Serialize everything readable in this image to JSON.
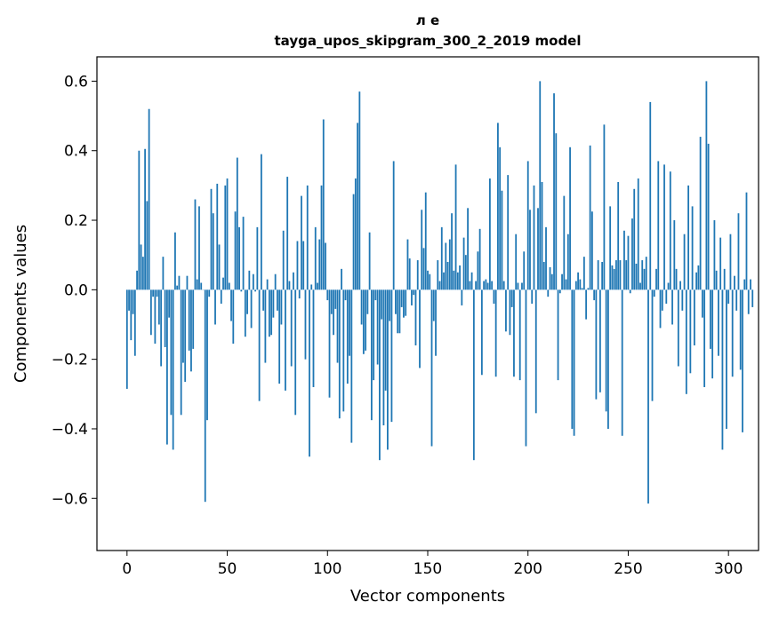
{
  "chart_data": {
    "type": "bar",
    "title_line1": "л е",
    "title_line2": "tayga_upos_skipgram_300_2_2019 model",
    "xlabel": "Vector components",
    "ylabel": "Components values",
    "xlim": [
      -15,
      315
    ],
    "ylim": [
      -0.75,
      0.67
    ],
    "xticks": [
      0,
      50,
      100,
      150,
      200,
      250,
      300
    ],
    "xtick_labels": [
      "0",
      "50",
      "100",
      "150",
      "200",
      "250",
      "300"
    ],
    "yticks": [
      -0.6,
      -0.4,
      -0.2,
      0.0,
      0.2,
      0.4,
      0.6
    ],
    "ytick_labels": [
      "−0.6",
      "−0.4",
      "−0.2",
      "0.0",
      "0.2",
      "0.4",
      "0.6"
    ],
    "bar_color": "#1f77b4",
    "values": [
      -0.285,
      -0.06,
      -0.145,
      -0.07,
      -0.19,
      0.055,
      0.4,
      0.13,
      0.095,
      0.405,
      0.255,
      0.52,
      -0.13,
      -0.02,
      -0.155,
      -0.02,
      -0.1,
      -0.22,
      0.095,
      -0.165,
      -0.445,
      -0.08,
      -0.36,
      -0.46,
      0.165,
      0.012,
      0.04,
      -0.36,
      -0.21,
      -0.265,
      0.04,
      -0.175,
      -0.235,
      -0.17,
      0.26,
      0.03,
      0.24,
      0.02,
      0.0,
      -0.61,
      -0.375,
      -0.02,
      0.29,
      0.22,
      -0.1,
      0.305,
      0.13,
      -0.04,
      0.035,
      0.3,
      0.32,
      0.02,
      -0.09,
      -0.155,
      0.225,
      0.38,
      0.18,
      -0.005,
      0.21,
      -0.135,
      -0.07,
      0.055,
      -0.11,
      0.045,
      -0.005,
      0.18,
      -0.32,
      0.39,
      -0.06,
      -0.21,
      0.03,
      -0.135,
      -0.13,
      -0.08,
      0.045,
      -0.06,
      -0.27,
      -0.1,
      0.17,
      -0.29,
      0.325,
      0.025,
      -0.22,
      0.05,
      -0.36,
      0.14,
      -0.025,
      0.27,
      0.14,
      -0.2,
      0.3,
      -0.48,
      0.015,
      -0.28,
      0.18,
      0.02,
      0.145,
      0.3,
      0.49,
      0.135,
      -0.03,
      -0.31,
      -0.07,
      -0.13,
      -0.055,
      -0.21,
      -0.37,
      0.06,
      -0.35,
      -0.03,
      -0.27,
      -0.19,
      -0.44,
      0.275,
      0.32,
      0.48,
      0.57,
      -0.1,
      -0.185,
      -0.175,
      -0.07,
      0.165,
      -0.375,
      -0.26,
      -0.03,
      -0.215,
      -0.49,
      -0.085,
      -0.39,
      -0.29,
      -0.46,
      -0.09,
      -0.38,
      0.37,
      -0.07,
      -0.125,
      -0.125,
      -0.05,
      -0.08,
      -0.075,
      0.145,
      0.09,
      -0.045,
      -0.015,
      -0.16,
      0.085,
      -0.225,
      0.23,
      0.12,
      0.28,
      0.055,
      0.045,
      -0.45,
      -0.09,
      -0.19,
      0.085,
      0.025,
      0.18,
      0.05,
      0.135,
      0.08,
      0.145,
      0.22,
      0.055,
      0.36,
      0.05,
      0.07,
      -0.045,
      0.15,
      0.1,
      0.235,
      0.025,
      0.05,
      -0.49,
      0.025,
      0.11,
      0.175,
      -0.245,
      0.025,
      0.03,
      0.02,
      0.32,
      0.025,
      -0.04,
      -0.25,
      0.48,
      0.41,
      0.285,
      0.025,
      -0.12,
      0.33,
      -0.13,
      -0.05,
      -0.25,
      0.16,
      0.02,
      -0.26,
      0.02,
      0.11,
      -0.45,
      0.37,
      0.23,
      -0.04,
      0.3,
      -0.355,
      0.235,
      0.6,
      0.31,
      0.08,
      0.18,
      -0.02,
      0.065,
      0.045,
      0.565,
      0.45,
      -0.26,
      -0.01,
      0.045,
      0.27,
      0.03,
      0.16,
      0.41,
      -0.4,
      -0.42,
      0.025,
      0.05,
      0.03,
      0.005,
      0.095,
      -0.085,
      0.005,
      0.415,
      0.225,
      -0.03,
      -0.315,
      0.085,
      -0.295,
      0.08,
      0.475,
      -0.35,
      -0.4,
      0.24,
      0.07,
      0.06,
      0.085,
      0.31,
      0.085,
      -0.42,
      0.17,
      0.085,
      0.155,
      -0.01,
      0.205,
      0.29,
      0.075,
      0.32,
      0.02,
      0.085,
      0.06,
      0.095,
      -0.615,
      0.54,
      -0.32,
      -0.02,
      0.06,
      0.37,
      -0.11,
      -0.06,
      0.36,
      -0.04,
      0.02,
      0.34,
      -0.1,
      0.2,
      0.06,
      -0.22,
      0.025,
      -0.06,
      0.16,
      -0.3,
      0.3,
      -0.24,
      0.24,
      -0.16,
      0.05,
      0.07,
      0.44,
      -0.08,
      -0.28,
      0.6,
      0.42,
      -0.17,
      -0.255,
      0.2,
      0.055,
      -0.19,
      0.15,
      -0.46,
      0.06,
      -0.4,
      -0.04,
      0.16,
      -0.25,
      0.04,
      -0.06,
      0.22,
      -0.23,
      -0.41,
      0.03,
      0.28,
      -0.07,
      0.03,
      -0.05
    ]
  }
}
